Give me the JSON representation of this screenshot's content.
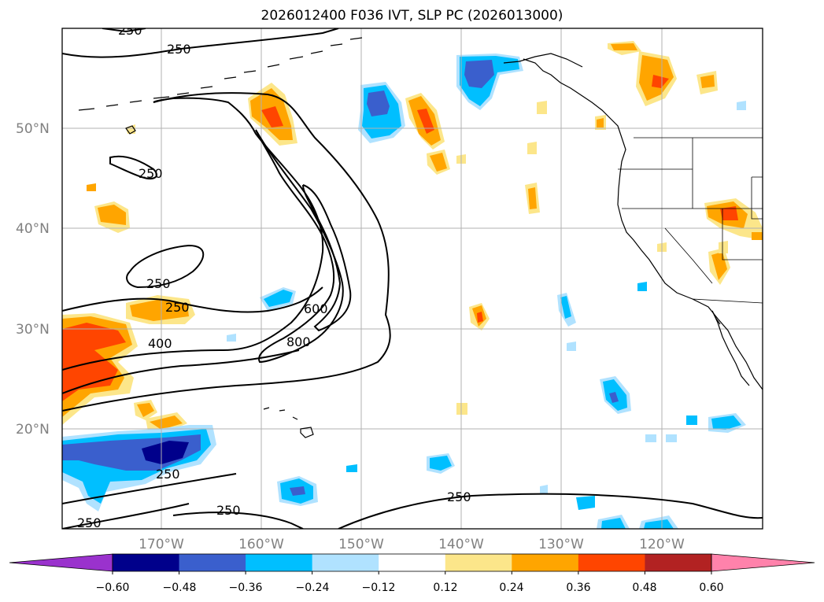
{
  "title": "2026012400 F036 IVT, SLP PC (2026013000)",
  "lat_labels": [
    "50°N",
    "40°N",
    "30°N",
    "20°N"
  ],
  "lon_labels": [
    "170°W",
    "160°W",
    "150°W",
    "140°W",
    "130°W",
    "120°W"
  ],
  "colorbar": {
    "tick_labels": [
      "−0.60",
      "−0.48",
      "−0.36",
      "−0.24",
      "−0.12",
      "0.12",
      "0.24",
      "0.36",
      "0.48",
      "0.60"
    ],
    "colors": [
      "#9a32cd",
      "#00008b",
      "#3a5fcd",
      "#00bfff",
      "#b0e2ff",
      "#ffffff",
      "#fce68a",
      "#ffa500",
      "#ff4500",
      "#b22222",
      "#ff82ab"
    ]
  },
  "contour_labels": [
    "250",
    "250",
    "250",
    "250",
    "250",
    "400",
    "600",
    "800",
    "250",
    "250",
    "250",
    "250"
  ],
  "colors": {
    "frame": "#000000",
    "grid": "#b0b0b0",
    "contour": "#000000"
  }
}
